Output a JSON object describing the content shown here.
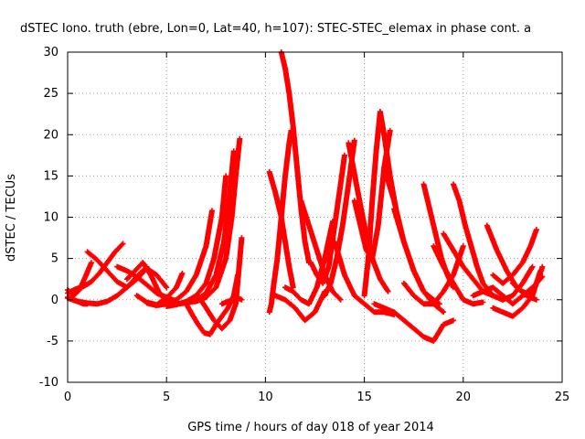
{
  "chart_data": {
    "type": "scatter",
    "title": "dSTEC Iono. truth (ebre, Lon=0, Lat=40, h=107): STEC-STEC_elemax in phase cont. a",
    "xlabel": "GPS time / hours of day 018 of year 2014",
    "ylabel": "dSTEC  / TECUs",
    "xlim": [
      0,
      25
    ],
    "ylim": [
      -10,
      30
    ],
    "xticks": [
      0,
      5,
      10,
      15,
      20,
      25
    ],
    "xtick_labels": [
      "0",
      "5",
      "10",
      "15",
      "20",
      "25"
    ],
    "yticks": [
      -10,
      -5,
      0,
      5,
      10,
      15,
      20,
      25,
      30
    ],
    "ytick_labels": [
      "-10",
      "-5",
      "0",
      "5",
      "10",
      "15",
      "20",
      "25",
      "30"
    ],
    "grid": true,
    "marker": "+",
    "color": "#ff0000",
    "series": [
      {
        "x": [
          0.0,
          0.3,
          0.6,
          0.9,
          1.2
        ],
        "y": [
          1.2,
          0.5,
          1.2,
          2.8,
          4.5
        ]
      },
      {
        "x": [
          0.0,
          0.3,
          0.6,
          0.8,
          1.0
        ],
        "y": [
          0.3,
          0.0,
          -0.3,
          -0.5,
          -0.5
        ]
      },
      {
        "x": [
          0.0,
          0.5,
          1.0,
          1.5,
          2.0,
          2.5,
          3.0,
          3.5,
          4.0
        ],
        "y": [
          0.2,
          -0.2,
          -0.4,
          -0.5,
          -0.2,
          0.5,
          1.5,
          2.8,
          4.0
        ]
      },
      {
        "x": [
          0.0,
          0.4,
          0.8,
          1.2,
          1.6,
          2.0,
          2.4,
          2.8
        ],
        "y": [
          0.8,
          1.3,
          1.6,
          2.2,
          3.2,
          4.5,
          5.8,
          6.8
        ]
      },
      {
        "x": [
          1.0,
          1.5,
          2.0,
          2.5,
          3.0,
          3.5,
          4.0,
          4.5,
          5.0
        ],
        "y": [
          5.8,
          4.8,
          3.5,
          2.2,
          1.5,
          2.5,
          3.8,
          3.0,
          1.5
        ]
      },
      {
        "x": [
          2.5,
          3.0,
          3.5,
          4.0,
          4.5,
          5.0,
          5.5
        ],
        "y": [
          4.0,
          3.5,
          2.8,
          1.8,
          0.8,
          0.3,
          -0.2
        ]
      },
      {
        "x": [
          3.0,
          3.4,
          3.8,
          4.2,
          4.6,
          5.0
        ],
        "y": [
          2.5,
          3.5,
          4.5,
          3.0,
          1.0,
          -0.3
        ]
      },
      {
        "x": [
          3.5,
          4.0,
          4.5,
          5.0,
          5.5,
          5.8
        ],
        "y": [
          0.5,
          -0.3,
          -0.6,
          0.2,
          1.5,
          3.2
        ]
      },
      {
        "x": [
          4.0,
          4.5,
          5.0,
          5.5,
          6.0,
          6.5,
          7.0,
          7.3
        ],
        "y": [
          -0.4,
          -0.7,
          -0.5,
          0.0,
          1.0,
          3.0,
          6.5,
          10.8
        ]
      },
      {
        "x": [
          5.0,
          5.5,
          6.0,
          6.5,
          7.0,
          7.4,
          7.8,
          8.0
        ],
        "y": [
          -0.8,
          -0.6,
          -0.2,
          0.5,
          2.0,
          5.0,
          10.0,
          15.0
        ]
      },
      {
        "x": [
          5.5,
          6.0,
          6.5,
          7.0,
          7.5,
          7.9,
          8.2,
          8.4
        ],
        "y": [
          -0.5,
          -0.4,
          -0.1,
          0.8,
          3.0,
          7.0,
          13.0,
          18.0
        ]
      },
      {
        "x": [
          6.0,
          6.5,
          7.0,
          7.5,
          8.0,
          8.3,
          8.5,
          8.7
        ],
        "y": [
          -0.3,
          -0.2,
          0.3,
          1.5,
          5.0,
          10.0,
          15.0,
          19.5
        ]
      },
      {
        "x": [
          6.0,
          6.3,
          6.6,
          6.9,
          7.2,
          7.5,
          7.8,
          8.1,
          8.4,
          8.6
        ],
        "y": [
          -0.5,
          -1.8,
          -3.0,
          -4.0,
          -4.2,
          -3.0,
          -2.0,
          -1.0,
          0.5,
          3.0
        ]
      },
      {
        "x": [
          6.6,
          7.0,
          7.4,
          7.8,
          8.2,
          8.5,
          8.8
        ],
        "y": [
          0.5,
          -1.0,
          -2.5,
          -3.5,
          -2.5,
          -0.5,
          7.5
        ]
      },
      {
        "x": [
          7.8,
          8.1,
          8.4,
          8.6,
          8.8
        ],
        "y": [
          -0.5,
          -0.2,
          0.0,
          0.2,
          0.0
        ]
      },
      {
        "x": [
          10.2,
          10.3,
          10.4,
          10.6,
          10.8,
          11.0,
          11.2,
          11.3
        ],
        "y": [
          -1.5,
          -0.5,
          1.5,
          5.0,
          10.0,
          15.0,
          19.0,
          20.5
        ]
      },
      {
        "x": [
          10.2,
          10.5,
          10.8,
          11.0,
          11.2,
          11.4
        ],
        "y": [
          15.5,
          13.0,
          10.0,
          7.0,
          4.0,
          1.5
        ]
      },
      {
        "x": [
          10.8,
          11.0,
          11.2,
          11.4,
          11.6,
          11.8,
          12.0,
          12.2
        ],
        "y": [
          30.0,
          28.0,
          25.0,
          21.0,
          16.0,
          11.0,
          7.0,
          4.5
        ]
      },
      {
        "x": [
          10.5,
          11.0,
          11.5,
          12.0,
          12.5,
          13.0
        ],
        "y": [
          0.5,
          0.0,
          -1.0,
          -2.5,
          -1.5,
          1.0
        ]
      },
      {
        "x": [
          11.0,
          11.4,
          11.8,
          12.2,
          12.6,
          13.0,
          13.4
        ],
        "y": [
          1.5,
          1.0,
          0.0,
          -0.5,
          1.5,
          5.0,
          9.5
        ]
      },
      {
        "x": [
          11.8,
          12.2,
          12.6,
          13.0,
          13.4,
          13.8
        ],
        "y": [
          12.0,
          9.0,
          6.0,
          3.0,
          1.0,
          0.0
        ]
      },
      {
        "x": [
          12.3,
          12.6,
          12.9,
          13.2,
          13.5,
          13.8,
          14.0
        ],
        "y": [
          4.5,
          3.0,
          2.0,
          4.0,
          9.0,
          14.0,
          17.5
        ]
      },
      {
        "x": [
          13.0,
          13.3,
          13.6,
          13.9,
          14.2,
          14.5
        ],
        "y": [
          0.5,
          2.0,
          5.0,
          9.0,
          14.0,
          19.3
        ]
      },
      {
        "x": [
          13.5,
          14.0,
          14.5,
          15.0,
          15.5,
          16.0,
          16.5
        ],
        "y": [
          7.0,
          3.0,
          0.5,
          -0.5,
          -1.5,
          -1.5,
          -1.8
        ]
      },
      {
        "x": [
          14.2,
          14.6,
          15.0,
          15.4,
          15.8,
          16.2
        ],
        "y": [
          19.0,
          14.0,
          9.0,
          5.0,
          2.5,
          1.0
        ]
      },
      {
        "x": [
          14.5,
          14.8,
          15.1,
          15.4,
          15.7,
          16.0,
          16.3
        ],
        "y": [
          12.0,
          9.0,
          6.0,
          5.0,
          9.0,
          16.0,
          20.5
        ]
      },
      {
        "x": [
          15.0,
          15.2,
          15.4,
          15.6,
          15.8,
          16.0,
          16.3,
          16.6
        ],
        "y": [
          0.5,
          5.0,
          12.0,
          18.0,
          22.8,
          20.0,
          15.0,
          11.0
        ]
      },
      {
        "x": [
          15.5,
          16.0,
          16.5,
          17.0,
          17.5,
          18.0,
          18.5,
          19.0,
          19.5
        ],
        "y": [
          -0.5,
          -1.0,
          -1.5,
          -2.5,
          -3.5,
          -4.5,
          -5.0,
          -3.0,
          -2.5
        ]
      },
      {
        "x": [
          16.0,
          16.5,
          17.0,
          17.5,
          18.0,
          18.5,
          19.0
        ],
        "y": [
          16.0,
          12.0,
          7.0,
          3.5,
          1.0,
          -0.5,
          -1.5
        ]
      },
      {
        "x": [
          16.5,
          17.0,
          17.5,
          18.0,
          18.5,
          18.8
        ],
        "y": [
          11.0,
          7.0,
          3.5,
          1.0,
          0.0,
          -0.5
        ]
      },
      {
        "x": [
          17.0,
          17.5,
          18.0,
          18.5,
          19.0,
          19.5,
          20.0
        ],
        "y": [
          2.0,
          0.5,
          -0.5,
          -0.5,
          1.0,
          3.0,
          6.5
        ]
      },
      {
        "x": [
          18.0,
          18.3,
          18.6,
          18.9,
          19.2,
          19.5
        ],
        "y": [
          14.0,
          11.0,
          8.0,
          5.0,
          3.0,
          1.5
        ]
      },
      {
        "x": [
          18.5,
          19.0,
          19.5,
          20.0,
          20.5,
          21.0
        ],
        "y": [
          6.5,
          4.0,
          2.0,
          0.0,
          -0.5,
          -0.3
        ]
      },
      {
        "x": [
          19.0,
          19.5,
          20.0,
          20.5,
          21.0,
          21.5,
          22.0
        ],
        "y": [
          8.0,
          6.0,
          4.0,
          2.5,
          1.0,
          0.5,
          0.0
        ]
      },
      {
        "x": [
          19.5,
          19.8,
          20.1,
          20.4,
          20.7,
          21.0,
          21.5,
          22.0,
          22.5,
          23.0,
          23.5
        ],
        "y": [
          14.0,
          12.0,
          9.0,
          6.5,
          4.0,
          2.0,
          0.5,
          0.0,
          0.5,
          2.0,
          4.0
        ]
      },
      {
        "x": [
          20.5,
          21.0,
          21.5,
          22.0,
          22.5,
          23.0,
          23.5
        ],
        "y": [
          0.5,
          1.0,
          1.5,
          0.5,
          -0.5,
          0.5,
          1.5
        ]
      },
      {
        "x": [
          21.2,
          21.7,
          22.2,
          22.7,
          23.2,
          23.7
        ],
        "y": [
          9.0,
          6.0,
          3.5,
          1.5,
          0.5,
          0.0
        ]
      },
      {
        "x": [
          21.5,
          22.0,
          22.5,
          23.0,
          23.5,
          23.9
        ],
        "y": [
          -1.0,
          -1.5,
          -2.0,
          -1.0,
          0.5,
          3.5
        ]
      },
      {
        "x": [
          21.5,
          22.0,
          22.5,
          23.0,
          23.4,
          23.7
        ],
        "y": [
          3.0,
          2.0,
          3.0,
          4.5,
          6.5,
          8.5
        ]
      },
      {
        "x": [
          22.5,
          23.0,
          23.4,
          23.8,
          24.0
        ],
        "y": [
          2.0,
          1.0,
          0.5,
          2.5,
          4.0
        ]
      },
      {
        "x": [
          23.0,
          23.4,
          23.7,
          24.0
        ],
        "y": [
          0.5,
          1.0,
          2.0,
          2.8
        ]
      }
    ]
  }
}
